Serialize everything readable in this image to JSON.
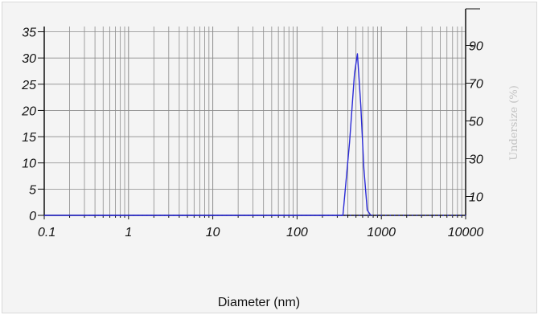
{
  "chart_data": {
    "type": "line",
    "xlabel": "Diameter (nm)",
    "ylabel": "",
    "y2label": "Undersize (%)",
    "x_scale": "log",
    "xlim": [
      0.1,
      10000
    ],
    "ylim": [
      0,
      36
    ],
    "y2lim": [
      0,
      100
    ],
    "x_tick_labels": [
      "0.1",
      "1",
      "10",
      "100",
      "1000",
      "10000"
    ],
    "x_tick_values": [
      0.1,
      1,
      10,
      100,
      1000,
      10000
    ],
    "y_tick_labels": [
      "0",
      "5",
      "10",
      "15",
      "20",
      "25",
      "30",
      "35"
    ],
    "y_tick_values": [
      0,
      5,
      10,
      15,
      20,
      25,
      30,
      35
    ],
    "y2_tick_labels": [
      "10",
      "30",
      "50",
      "70",
      "90"
    ],
    "y2_tick_values": [
      10,
      30,
      50,
      70,
      90
    ],
    "grid": true,
    "colors": {
      "series": "#2b2bd6",
      "grid": "#8c8c8c",
      "axis": "#111111"
    },
    "series": [
      {
        "style": "solid",
        "x": [
          0.1,
          0.3,
          350,
          420,
          480,
          520,
          570,
          620,
          680,
          750
        ],
        "y": [
          0,
          0,
          0,
          14,
          27,
          30.8,
          21,
          9,
          1,
          0
        ]
      },
      {
        "style": "dotted",
        "x": [
          0.3,
          10000
        ],
        "y": [
          0,
          0
        ]
      }
    ]
  }
}
